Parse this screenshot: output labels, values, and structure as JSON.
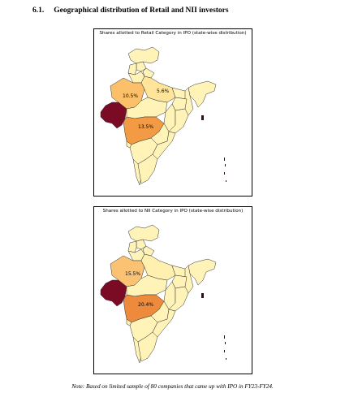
{
  "heading": {
    "number": "6.1.",
    "title": "Geographical distribution of Retail and NII investors"
  },
  "maps": [
    {
      "title": "Shares allotted to Retail Category in IPO (state-wise distribution)",
      "labels": {
        "rajasthan": "10.5%",
        "up": "5.6%",
        "maharashtra": "13.5%"
      }
    },
    {
      "title": "Shares allotted to NII Category in IPO (state-wise distribution)",
      "labels": {
        "rajasthan": "15.5%",
        "maharashtra": "20.4%"
      }
    }
  ],
  "colors": {
    "default": "#fff3b8",
    "light": "#ffe59a",
    "medium": "#fdc06a",
    "strong": "#f39a45",
    "gujarat": "#7b0a24",
    "dark": "#2a1418"
  },
  "note": "Note: Based on limited sample of 80 companies that came up with IPO in FY23-FY24."
}
